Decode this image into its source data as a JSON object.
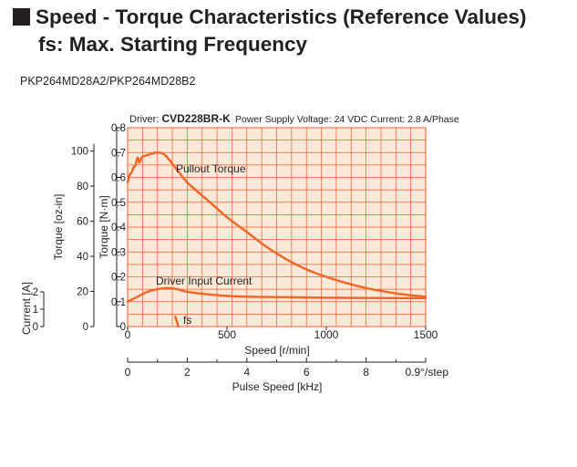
{
  "heading": {
    "line1": "Speed - Torque Characteristics (Reference Values)",
    "line2": "fs: Max. Starting Frequency"
  },
  "model": "PKP264MD28A2/PKP264MD28B2",
  "chart_data": {
    "type": "line",
    "driver_prefix": "Driver: ",
    "driver_name": "CVD228BR-K",
    "conditions": "Power Supply Voltage: 24 VDC  Current: 2.8 A/Phase",
    "xlabel": "Speed [r/min]",
    "x2label": "Pulse Speed [kHz]",
    "x2unit": "0.9°/step",
    "ylabel_nm": "Torque [N·m]",
    "ylabel_ozin": "Torque [oz-in]",
    "ylabel_current": "Current [A]",
    "xlim": [
      0,
      1500
    ],
    "ylim": [
      0,
      0.8
    ],
    "grid": true,
    "colors": {
      "curve": "#f26522",
      "plot_bg": "#fde9d9",
      "grid": "#f15a29",
      "axis": "#231f20"
    },
    "x_ticks": [
      0,
      500,
      1000,
      1500
    ],
    "x_tick_labels": [
      "0",
      "500",
      "1000",
      "1500"
    ],
    "x2_ticks": [
      "0",
      "2",
      "4",
      "6",
      "8"
    ],
    "y_ticks_nm": [
      "0",
      "0.1",
      "0.2",
      "0.3",
      "0.4",
      "0.5",
      "0.6",
      "0.7",
      "0.8"
    ],
    "y_ticks_ozin": [
      "0",
      "20",
      "40",
      "60",
      "80",
      "100"
    ],
    "y_ticks_current": [
      "0",
      "1",
      "2"
    ],
    "series": [
      {
        "name": "Pullout Torque",
        "points": [
          [
            0,
            0.58
          ],
          [
            10,
            0.61
          ],
          [
            20,
            0.62
          ],
          [
            30,
            0.64
          ],
          [
            40,
            0.65
          ],
          [
            50,
            0.68
          ],
          [
            60,
            0.66
          ],
          [
            70,
            0.68
          ],
          [
            80,
            0.685
          ],
          [
            100,
            0.69
          ],
          [
            120,
            0.695
          ],
          [
            140,
            0.7
          ],
          [
            160,
            0.7
          ],
          [
            180,
            0.695
          ],
          [
            200,
            0.68
          ],
          [
            250,
            0.63
          ],
          [
            300,
            0.58
          ],
          [
            400,
            0.51
          ],
          [
            500,
            0.44
          ],
          [
            600,
            0.38
          ],
          [
            700,
            0.32
          ],
          [
            800,
            0.27
          ],
          [
            900,
            0.23
          ],
          [
            1000,
            0.2
          ],
          [
            1100,
            0.175
          ],
          [
            1200,
            0.155
          ],
          [
            1300,
            0.14
          ],
          [
            1400,
            0.128
          ],
          [
            1500,
            0.12
          ]
        ]
      },
      {
        "name": "Driver Input Current",
        "points": [
          [
            0,
            0.1
          ],
          [
            50,
            0.12
          ],
          [
            100,
            0.14
          ],
          [
            150,
            0.15
          ],
          [
            200,
            0.155
          ],
          [
            250,
            0.15
          ],
          [
            300,
            0.14
          ],
          [
            400,
            0.13
          ],
          [
            500,
            0.123
          ],
          [
            600,
            0.12
          ],
          [
            800,
            0.118
          ],
          [
            1000,
            0.116
          ],
          [
            1200,
            0.115
          ],
          [
            1500,
            0.114
          ]
        ]
      },
      {
        "name": "fs",
        "points": [
          [
            240,
            0.04
          ],
          [
            255,
            0.0
          ]
        ]
      }
    ]
  }
}
